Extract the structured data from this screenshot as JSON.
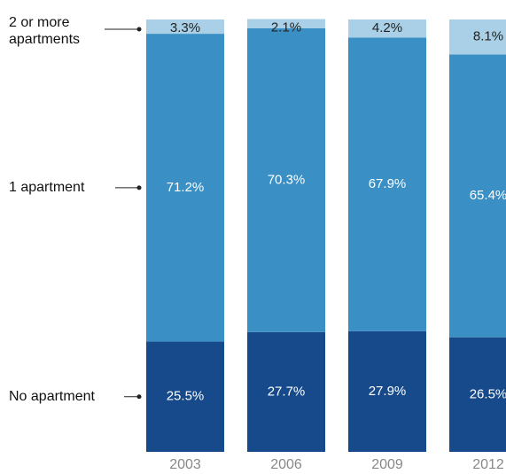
{
  "chart_data": {
    "type": "stacked-bar",
    "categories": [
      "2003",
      "2006",
      "2009",
      "2012"
    ],
    "ylim": [
      0,
      100
    ],
    "series": [
      {
        "name": "No apartment",
        "color": "#174a8a",
        "values": [
          25.5,
          27.7,
          27.9,
          26.5
        ],
        "value_labels": [
          "25.5%",
          "27.7%",
          "27.9%",
          "26.5%"
        ]
      },
      {
        "name": "1 apartment",
        "color": "#3a8fc4",
        "values": [
          71.2,
          70.3,
          67.9,
          65.4
        ],
        "value_labels": [
          "71.2%",
          "70.3%",
          "67.9%",
          "65.4%"
        ]
      },
      {
        "name": "2 or more apartments",
        "color": "#a9d0e6",
        "values": [
          3.3,
          2.1,
          4.2,
          8.1
        ],
        "value_labels": [
          "3.3%",
          "2.1%",
          "4.2%",
          "8.1%"
        ]
      }
    ]
  }
}
